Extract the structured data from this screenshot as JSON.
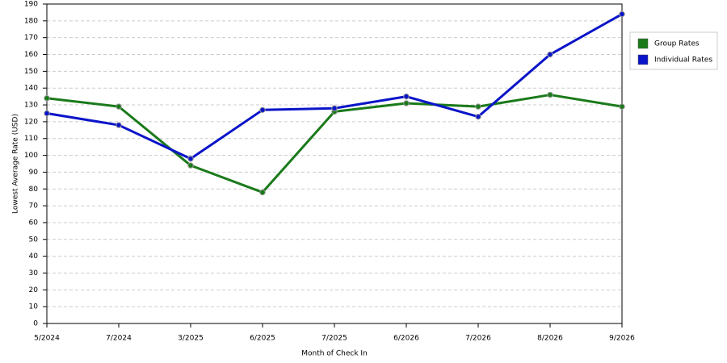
{
  "chart_data": {
    "type": "line",
    "x_label": "Month of Check In",
    "y_label": "Lowest Average Rate (USD)",
    "categories": [
      "5/2024",
      "7/2024",
      "3/2025",
      "6/2025",
      "7/2025",
      "6/2026",
      "7/2026",
      "8/2026",
      "9/2026"
    ],
    "series": [
      {
        "name": "Group Rates",
        "color": "#1a7a1a",
        "values": [
          134,
          129,
          94,
          78,
          126,
          131,
          129,
          136,
          129
        ]
      },
      {
        "name": "Individual Rates",
        "color": "#0a14c8",
        "values": [
          125,
          118,
          98,
          127,
          128,
          135,
          123,
          160,
          184
        ]
      }
    ],
    "ylim": [
      0,
      190
    ],
    "yticks": [
      0,
      10,
      20,
      30,
      40,
      50,
      60,
      70,
      80,
      90,
      100,
      110,
      120,
      130,
      140,
      150,
      160,
      170,
      180,
      190
    ],
    "grid": true,
    "legend": "top-right"
  }
}
